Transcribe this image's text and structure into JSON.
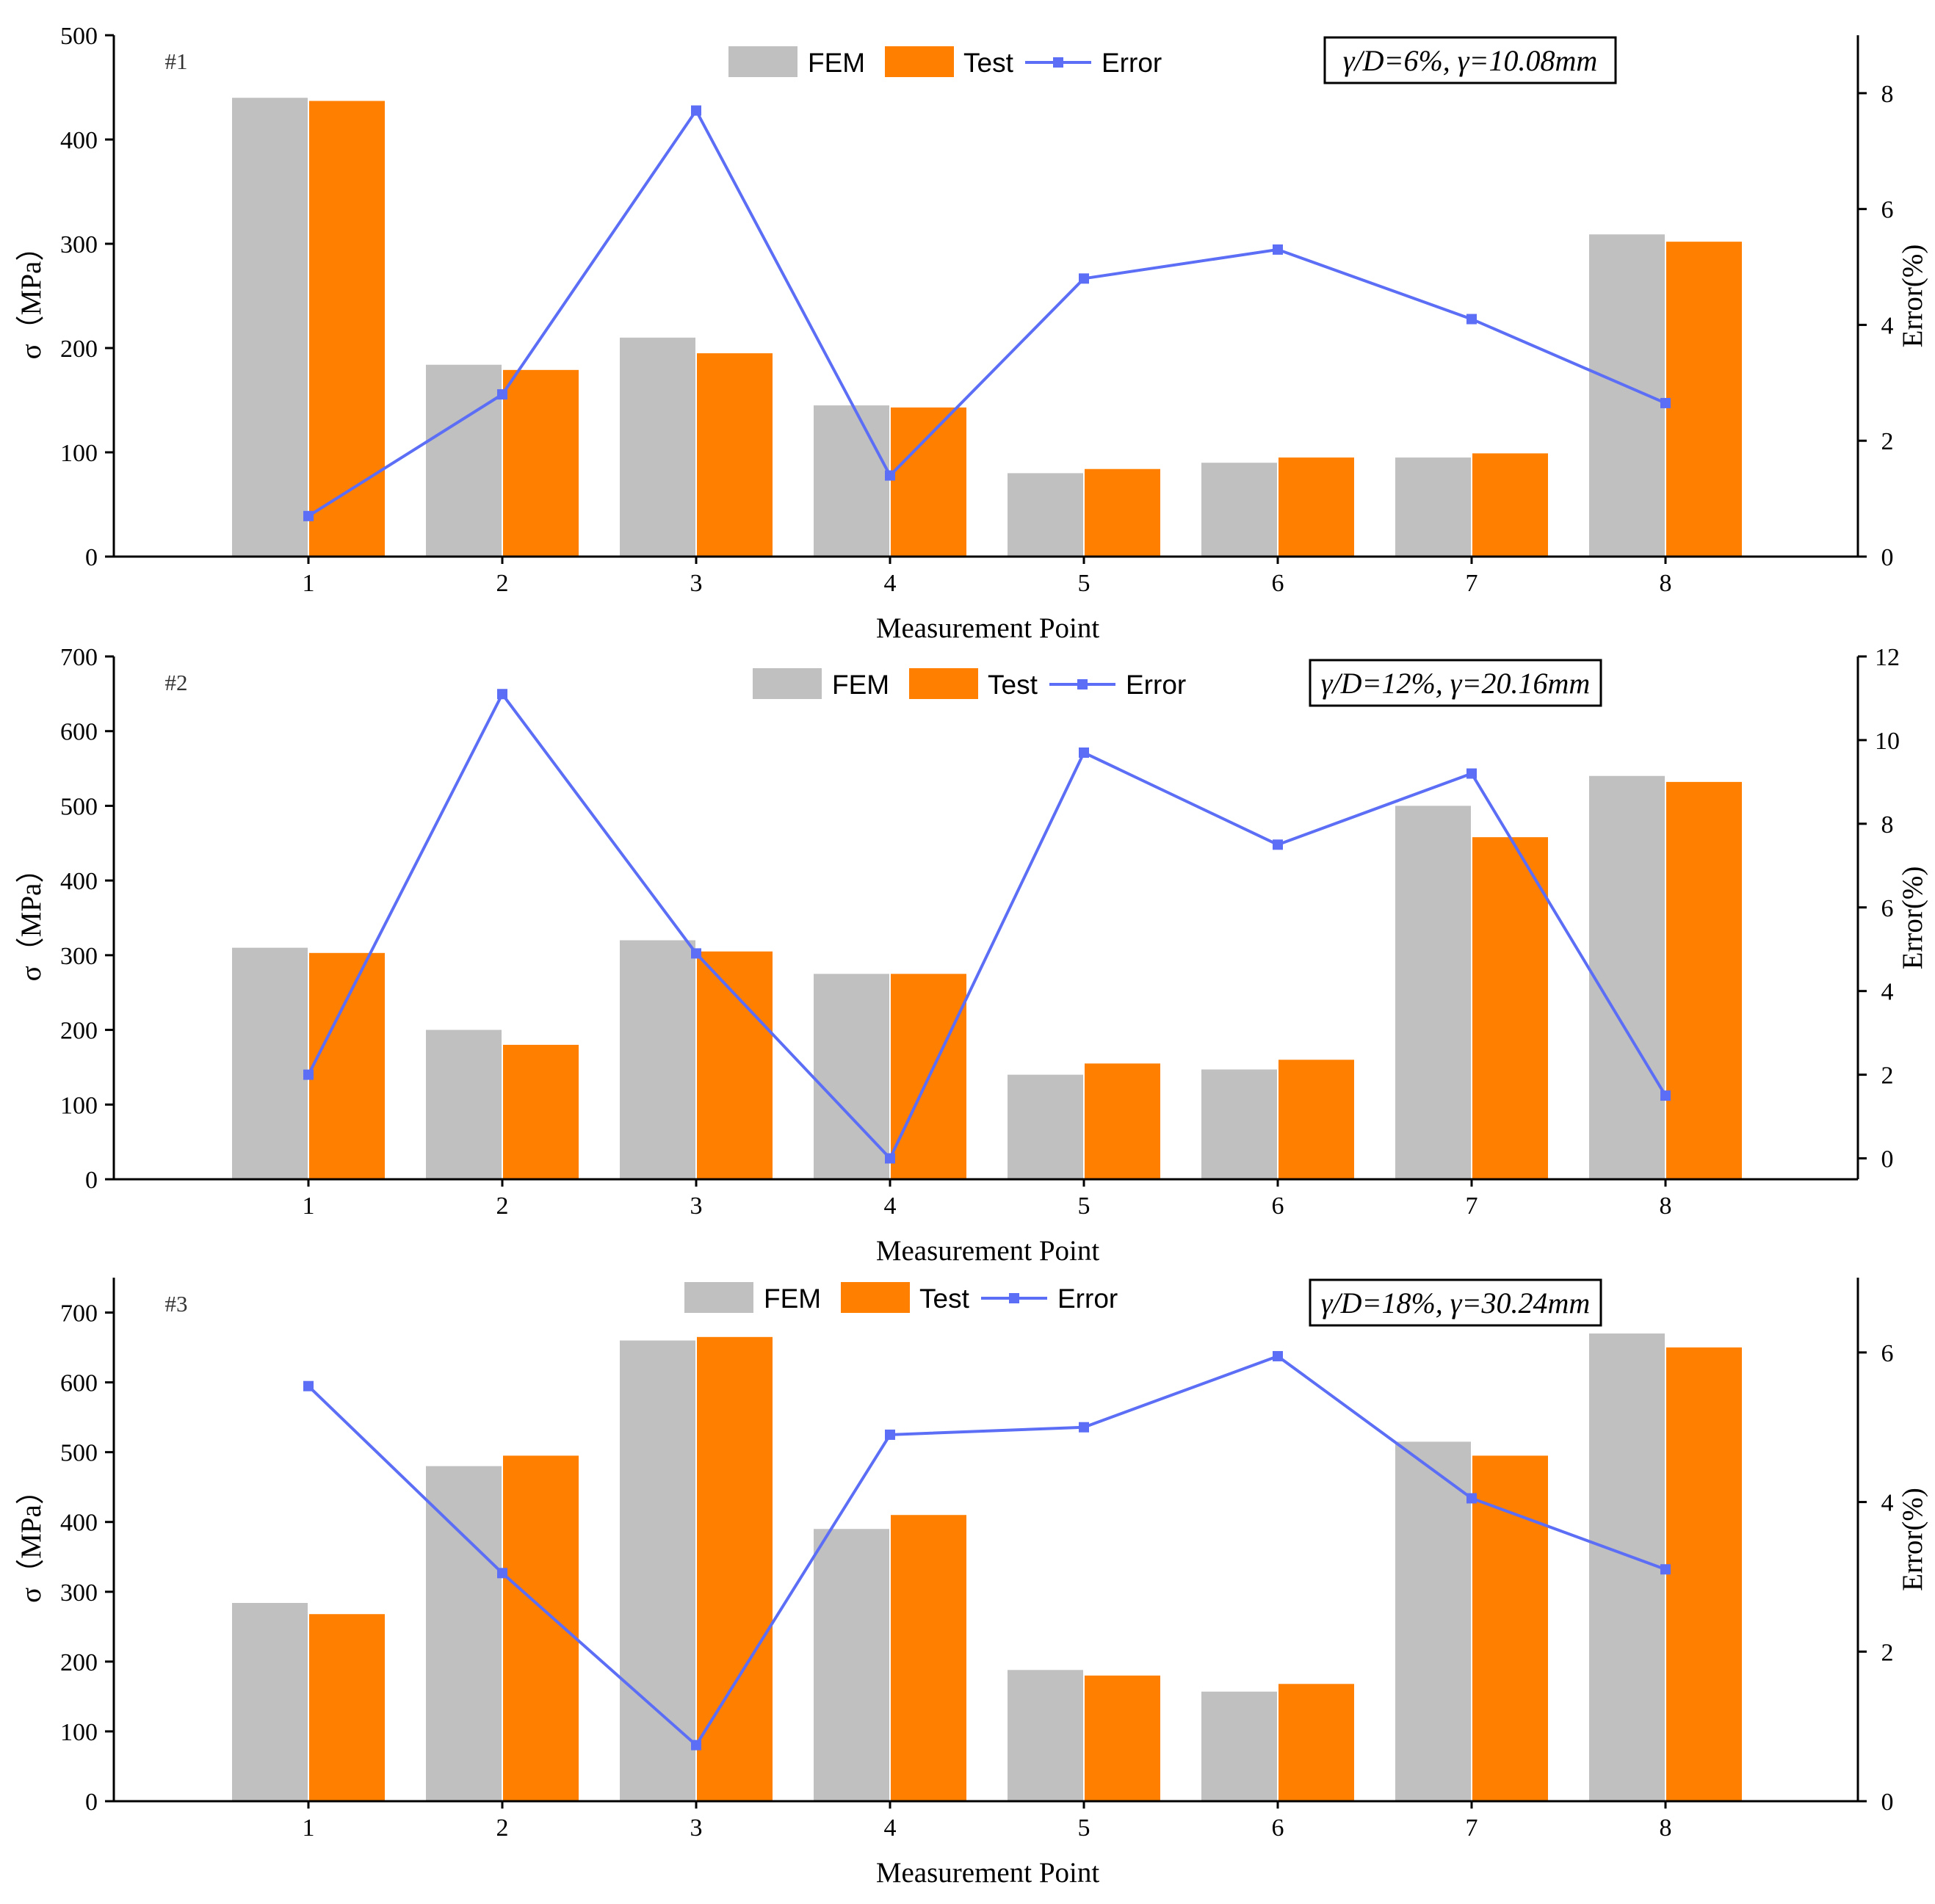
{
  "colors": {
    "fem": "#c0c0c0",
    "test": "#ff7f00",
    "error": "#5b6ef5",
    "axis": "#000000"
  },
  "legend": {
    "fem_label": "FEM",
    "test_label": "Test",
    "error_label": "Error"
  },
  "chart_data": [
    {
      "type": "bar",
      "panel_label": "#1",
      "annotation": "γ/D=6%, γ=10.08mm",
      "title": "",
      "xlabel": "Measurement Point",
      "ylabel": "σ（MPa）",
      "y2label": "Error(%)",
      "categories": [
        "1",
        "2",
        "3",
        "4",
        "5",
        "6",
        "7",
        "8"
      ],
      "ylim": [
        0,
        500
      ],
      "yticks": [
        0,
        100,
        200,
        300,
        400,
        500
      ],
      "y2lim": [
        0,
        9
      ],
      "y2ticks": [
        0,
        2,
        4,
        6,
        8
      ],
      "series": [
        {
          "name": "FEM",
          "type": "bar",
          "values": [
            440,
            184,
            210,
            145,
            80,
            90,
            95,
            309
          ]
        },
        {
          "name": "Test",
          "type": "bar",
          "values": [
            437,
            179,
            195,
            143,
            84,
            95,
            99,
            302
          ]
        },
        {
          "name": "Error",
          "type": "line",
          "axis": "right",
          "values": [
            0.7,
            2.8,
            7.7,
            1.4,
            4.8,
            5.3,
            4.1,
            2.65
          ]
        }
      ]
    },
    {
      "type": "bar",
      "panel_label": "#2",
      "annotation": "γ/D=12%, γ=20.16mm",
      "title": "",
      "xlabel": "Measurement Point",
      "ylabel": "σ（MPa）",
      "y2label": "Error(%)",
      "categories": [
        "1",
        "2",
        "3",
        "4",
        "5",
        "6",
        "7",
        "8"
      ],
      "ylim": [
        0,
        700
      ],
      "yticks": [
        0,
        100,
        200,
        300,
        400,
        500,
        600,
        700
      ],
      "y2lim": [
        -0.5,
        12
      ],
      "y2ticks": [
        0,
        2,
        4,
        6,
        8,
        10,
        12
      ],
      "series": [
        {
          "name": "FEM",
          "type": "bar",
          "values": [
            310,
            200,
            320,
            275,
            140,
            147,
            500,
            540
          ]
        },
        {
          "name": "Test",
          "type": "bar",
          "values": [
            303,
            180,
            305,
            275,
            155,
            160,
            458,
            532
          ]
        },
        {
          "name": "Error",
          "type": "line",
          "axis": "right",
          "values": [
            2.0,
            11.1,
            4.9,
            0.0,
            9.7,
            7.5,
            9.2,
            1.5
          ]
        }
      ]
    },
    {
      "type": "bar",
      "panel_label": "#3",
      "annotation": "γ/D=18%, γ=30.24mm",
      "title": "",
      "xlabel": "Measurement Point",
      "ylabel": "σ（MPa）",
      "y2label": "Error(%)",
      "categories": [
        "1",
        "2",
        "3",
        "4",
        "5",
        "6",
        "7",
        "8"
      ],
      "ylim": [
        0,
        750
      ],
      "yticks": [
        0,
        100,
        200,
        300,
        400,
        500,
        600,
        700
      ],
      "y2lim": [
        0,
        7
      ],
      "y2ticks": [
        0,
        2,
        4,
        6
      ],
      "series": [
        {
          "name": "FEM",
          "type": "bar",
          "values": [
            284,
            480,
            660,
            390,
            188,
            157,
            515,
            670
          ]
        },
        {
          "name": "Test",
          "type": "bar",
          "values": [
            268,
            495,
            665,
            410,
            180,
            168,
            495,
            650
          ]
        },
        {
          "name": "Error",
          "type": "line",
          "axis": "right",
          "values": [
            5.55,
            3.05,
            0.75,
            4.9,
            5.0,
            5.95,
            4.05,
            3.1
          ]
        }
      ]
    }
  ]
}
